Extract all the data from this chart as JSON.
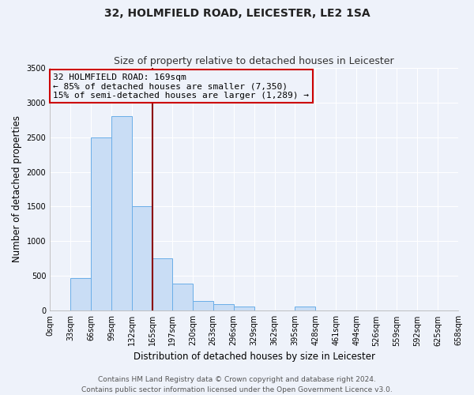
{
  "title": "32, HOLMFIELD ROAD, LEICESTER, LE2 1SA",
  "subtitle": "Size of property relative to detached houses in Leicester",
  "xlabel": "Distribution of detached houses by size in Leicester",
  "ylabel": "Number of detached properties",
  "bar_edges": [
    0,
    33,
    66,
    99,
    132,
    165,
    197,
    230,
    263,
    296,
    329,
    362,
    395,
    428,
    461,
    494,
    526,
    559,
    592,
    625,
    658
  ],
  "bar_heights": [
    0,
    470,
    2500,
    2800,
    1500,
    750,
    390,
    145,
    100,
    55,
    0,
    0,
    55,
    0,
    0,
    0,
    0,
    0,
    0,
    0
  ],
  "bar_color": "#c9ddf5",
  "bar_edge_color": "#6aaee8",
  "vline_x": 165,
  "vline_color": "#8b0000",
  "annotation_text_line1": "32 HOLMFIELD ROAD: 169sqm",
  "annotation_text_line2": "← 85% of detached houses are smaller (7,350)",
  "annotation_text_line3": "15% of semi-detached houses are larger (1,289) →",
  "annotation_box_edge_color": "#cc0000",
  "ylim": [
    0,
    3500
  ],
  "yticks": [
    0,
    500,
    1000,
    1500,
    2000,
    2500,
    3000,
    3500
  ],
  "xtick_labels": [
    "0sqm",
    "33sqm",
    "66sqm",
    "99sqm",
    "132sqm",
    "165sqm",
    "197sqm",
    "230sqm",
    "263sqm",
    "296sqm",
    "329sqm",
    "362sqm",
    "395sqm",
    "428sqm",
    "461sqm",
    "494sqm",
    "526sqm",
    "559sqm",
    "592sqm",
    "625sqm",
    "658sqm"
  ],
  "footer_line1": "Contains HM Land Registry data © Crown copyright and database right 2024.",
  "footer_line2": "Contains public sector information licensed under the Open Government Licence v3.0.",
  "bg_color": "#eef2fa",
  "grid_color": "#ffffff",
  "plot_bg_color": "#eef2fa",
  "title_fontsize": 10,
  "subtitle_fontsize": 9,
  "axis_label_fontsize": 8.5,
  "tick_fontsize": 7,
  "annotation_fontsize": 8,
  "footer_fontsize": 6.5
}
